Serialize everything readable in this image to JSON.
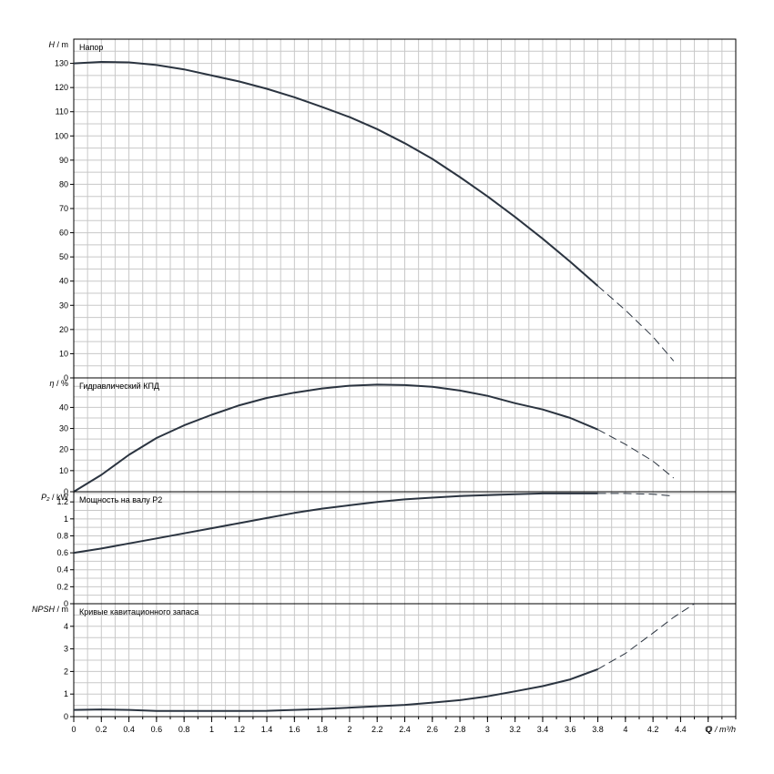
{
  "colors": {
    "grid": "#c8c8c8",
    "frame": "#000000",
    "curve": "#2b3440",
    "background": "#ffffff"
  },
  "chart_data": [
    {
      "type": "line",
      "title": "Напор",
      "ylabel_var": "H",
      "ylabel_unit": "m",
      "ylim": [
        0,
        140
      ],
      "yticks": [
        0,
        10,
        20,
        30,
        40,
        50,
        60,
        70,
        80,
        90,
        100,
        110,
        120,
        130
      ],
      "grid": true,
      "series": [
        {
          "style": "solid",
          "x": [
            0,
            0.2,
            0.4,
            0.6,
            0.8,
            1.0,
            1.2,
            1.4,
            1.6,
            1.8,
            2.0,
            2.2,
            2.4,
            2.6,
            2.8,
            3.0,
            3.2,
            3.4,
            3.6,
            3.8
          ],
          "y": [
            130,
            130.6,
            130.4,
            129.3,
            127.5,
            125.0,
            122.5,
            119.5,
            116.0,
            112.0,
            107.8,
            102.8,
            97.0,
            90.5,
            83.0,
            75.0,
            66.5,
            57.5,
            48.0,
            38.0
          ]
        },
        {
          "style": "dashed",
          "x": [
            3.8,
            4.0,
            4.2,
            4.35
          ],
          "y": [
            38.0,
            28.0,
            17.0,
            7.0
          ]
        }
      ]
    },
    {
      "type": "line",
      "title": "Гидравлический КПД",
      "ylabel_var": "η",
      "ylabel_unit": "%",
      "ylim": [
        0,
        54
      ],
      "yticks": [
        0,
        10,
        20,
        30,
        40
      ],
      "grid": true,
      "series": [
        {
          "style": "solid",
          "x": [
            0,
            0.2,
            0.4,
            0.6,
            0.8,
            1.0,
            1.2,
            1.4,
            1.6,
            1.8,
            2.0,
            2.2,
            2.4,
            2.6,
            2.8,
            3.0,
            3.2,
            3.4,
            3.6,
            3.8
          ],
          "y": [
            0,
            8.0,
            17.5,
            25.5,
            31.5,
            36.5,
            41.0,
            44.5,
            47.0,
            49.0,
            50.3,
            50.8,
            50.6,
            49.8,
            48.0,
            45.5,
            42.0,
            39.0,
            35.0,
            29.5
          ]
        },
        {
          "style": "dashed",
          "x": [
            3.8,
            4.0,
            4.2,
            4.35
          ],
          "y": [
            29.5,
            22.5,
            14.5,
            6.5
          ]
        }
      ]
    },
    {
      "type": "line",
      "title": "Мощность на валу P2",
      "ylabel_var": "P₂",
      "ylabel_unit": "kW",
      "ylim": [
        0,
        1.32
      ],
      "yticks": [
        0,
        0.2,
        0.4,
        0.6,
        0.8,
        1.0,
        1.2
      ],
      "ytick_labels": [
        "0",
        "0.2",
        "0.4",
        "0.6",
        "0.8",
        "1",
        "1.2"
      ],
      "grid": true,
      "series": [
        {
          "style": "solid",
          "x": [
            0,
            0.2,
            0.4,
            0.6,
            0.8,
            1.0,
            1.2,
            1.4,
            1.6,
            1.8,
            2.0,
            2.2,
            2.4,
            2.6,
            2.8,
            3.0,
            3.2,
            3.4,
            3.6,
            3.8
          ],
          "y": [
            0.6,
            0.65,
            0.71,
            0.77,
            0.83,
            0.89,
            0.95,
            1.01,
            1.07,
            1.12,
            1.16,
            1.2,
            1.23,
            1.25,
            1.27,
            1.28,
            1.29,
            1.3,
            1.3,
            1.3
          ]
        },
        {
          "style": "dashed",
          "x": [
            3.8,
            4.0,
            4.2,
            4.35
          ],
          "y": [
            1.3,
            1.3,
            1.29,
            1.27
          ]
        }
      ]
    },
    {
      "type": "line",
      "title": "Кривые кавитационного запаса",
      "ylabel_var": "NPSH",
      "ylabel_unit": "m",
      "ylim": [
        0,
        5
      ],
      "yticks": [
        0,
        1,
        2,
        3,
        4
      ],
      "grid": true,
      "series": [
        {
          "style": "solid",
          "x": [
            0,
            0.2,
            0.4,
            0.6,
            0.8,
            1.0,
            1.2,
            1.4,
            1.6,
            1.8,
            2.0,
            2.2,
            2.4,
            2.6,
            2.8,
            3.0,
            3.2,
            3.4,
            3.6,
            3.8
          ],
          "y": [
            0.3,
            0.32,
            0.3,
            0.25,
            0.25,
            0.25,
            0.25,
            0.26,
            0.3,
            0.34,
            0.4,
            0.46,
            0.52,
            0.62,
            0.73,
            0.9,
            1.12,
            1.35,
            1.65,
            2.1
          ]
        },
        {
          "style": "dashed",
          "x": [
            3.8,
            4.0,
            4.2,
            4.35,
            4.5
          ],
          "y": [
            2.1,
            2.8,
            3.7,
            4.4,
            5.0
          ]
        }
      ]
    }
  ],
  "x_axis": {
    "label": "Q / m³/h",
    "xlim": [
      0,
      4.8
    ],
    "ticks": [
      0,
      0.2,
      0.4,
      0.6,
      0.8,
      1.0,
      1.2,
      1.4,
      1.6,
      1.8,
      2.0,
      2.2,
      2.4,
      2.6,
      2.8,
      3.0,
      3.2,
      3.4,
      3.6,
      3.8,
      4.0,
      4.2,
      4.4,
      4.6
    ],
    "tick_labels": [
      "0",
      "0.2",
      "0.4",
      "0.6",
      "0.8",
      "1",
      "1.2",
      "1.4",
      "1.6",
      "1.8",
      "2",
      "2.2",
      "2.4",
      "2.6",
      "2.8",
      "3",
      "3.2",
      "3.4",
      "3.6",
      "3.8",
      "4",
      "4.2",
      "4.4",
      "Q"
    ]
  }
}
